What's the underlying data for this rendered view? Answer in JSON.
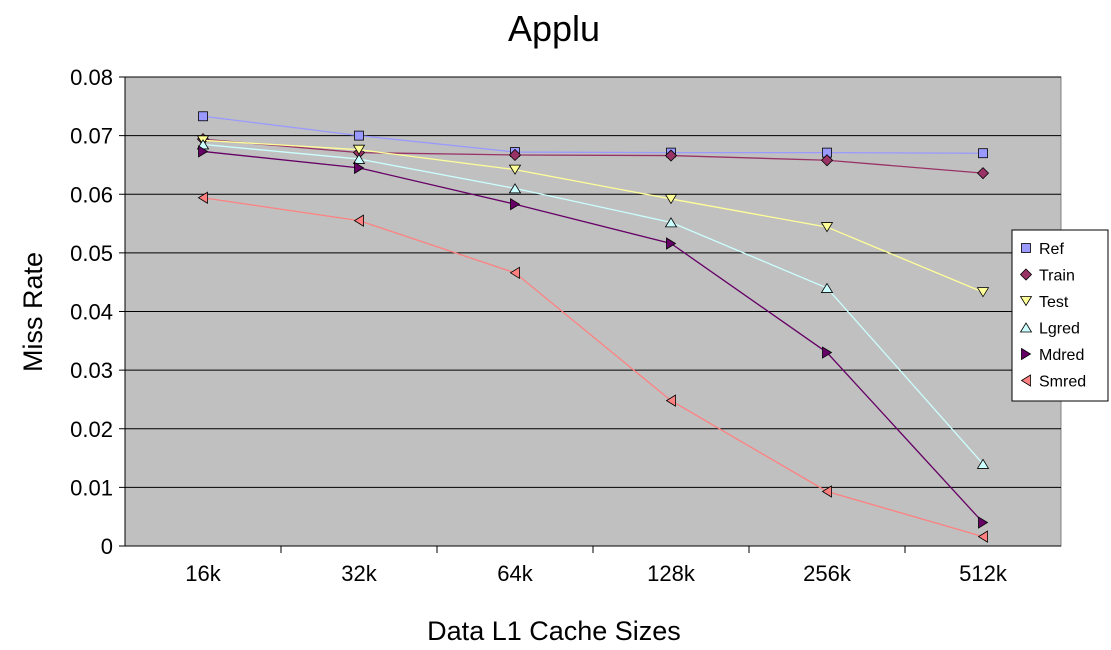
{
  "chart_data": {
    "type": "line",
    "title": "Applu",
    "xlabel": "Data L1 Cache Sizes",
    "ylabel": "Miss Rate",
    "categories": [
      "16k",
      "32k",
      "64k",
      "128k",
      "256k",
      "512k"
    ],
    "ylim": [
      0,
      0.08
    ],
    "yticks": [
      "0",
      "0.01",
      "0.02",
      "0.03",
      "0.04",
      "0.05",
      "0.06",
      "0.07",
      "0.08"
    ],
    "grid": true,
    "plot_background": "#c0c0c0",
    "legend_position": "right",
    "series": [
      {
        "name": "Ref",
        "values": [
          0.0733,
          0.07,
          0.0672,
          0.0671,
          0.0671,
          0.067
        ],
        "color": "#9999ff",
        "marker": "square"
      },
      {
        "name": "Train",
        "values": [
          0.0694,
          0.0671,
          0.0667,
          0.0666,
          0.0658,
          0.0636
        ],
        "color": "#993366",
        "marker": "diamond"
      },
      {
        "name": "Test",
        "values": [
          0.0692,
          0.0676,
          0.0642,
          0.0592,
          0.0544,
          0.0433
        ],
        "color": "#ffff99",
        "marker": "triangle-down"
      },
      {
        "name": "Lgred",
        "values": [
          0.0685,
          0.066,
          0.061,
          0.0552,
          0.044,
          0.014
        ],
        "color": "#ccffff",
        "marker": "triangle-up"
      },
      {
        "name": "Mdred",
        "values": [
          0.0673,
          0.0645,
          0.0583,
          0.0516,
          0.033,
          0.004
        ],
        "color": "#660066",
        "marker": "triangle-right"
      },
      {
        "name": "Smred",
        "values": [
          0.0594,
          0.0555,
          0.0466,
          0.0248,
          0.0093,
          0.0016
        ],
        "color": "#ff8080",
        "marker": "triangle-left"
      }
    ]
  }
}
